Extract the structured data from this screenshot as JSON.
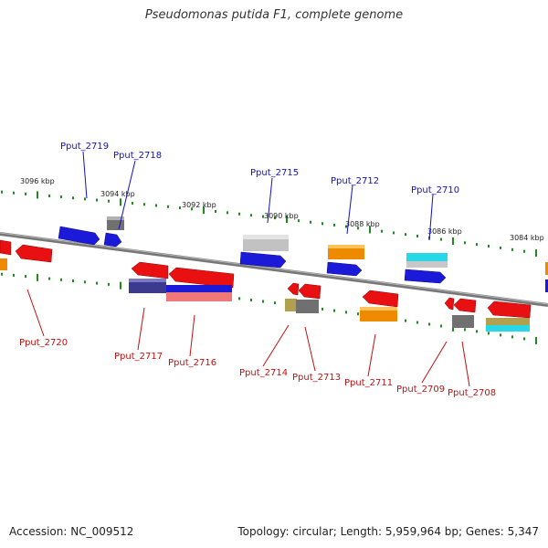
{
  "title": "Pseudomonas putida F1, complete genome",
  "footer": {
    "accession": "Accession: NC_009512",
    "summary": "Topology: circular; Length: 5,959,964 bp; Genes: 5,347"
  },
  "colors": {
    "backbone": "#7a7a7a",
    "tick": "#1e8a1e",
    "label_top": "#1010c0",
    "label_bottom": "#c01010"
  },
  "coordinates": [
    {
      "label": "3096 kbp"
    },
    {
      "label": "3094 kbp"
    },
    {
      "label": "3092 kbp"
    },
    {
      "label": "3090 kbp"
    },
    {
      "label": "3088 kbp"
    },
    {
      "label": "3086 kbp"
    },
    {
      "label": "3084 kbp"
    }
  ],
  "gene_labels": {
    "top": [
      "Pput_2719",
      "Pput_2718",
      "Pput_2715",
      "Pput_2712",
      "Pput_2710"
    ],
    "bottom": [
      "Pput_2720",
      "Pput_2717",
      "Pput_2716",
      "Pput_2714",
      "Pput_2713",
      "Pput_2711",
      "Pput_2709",
      "Pput_2708"
    ]
  }
}
